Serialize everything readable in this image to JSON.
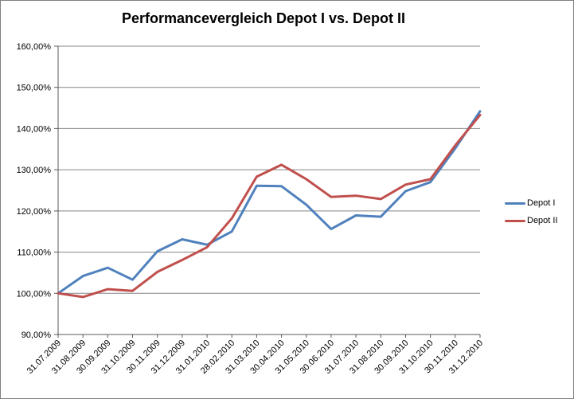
{
  "window": {
    "background": "#ffffff",
    "border_color": "#808080"
  },
  "style": {
    "gridline_color": "#848484",
    "axis_color": "#595959",
    "tick_label_color": "#000000",
    "title_color": "#000000",
    "series_line_width": 3
  },
  "chart_data": {
    "type": "line",
    "title": "Performancevergleich Depot I vs. Depot II",
    "categories": [
      "31.07.2009",
      "31.08.2009",
      "30.09.2009",
      "31.10.2009",
      "30.11.2009",
      "31.12.2009",
      "31.01.2010",
      "28.02.2010",
      "31.03.2010",
      "30.04.2010",
      "31.05.2010",
      "30.06.2010",
      "31.07.2010",
      "31.08.2010",
      "30.09.2010",
      "31.10.2010",
      "30.11.2010",
      "31.12.2010"
    ],
    "series": [
      {
        "name": "Depot I",
        "color": "#4F81BD",
        "values": [
          100.0,
          104.2,
          106.2,
          103.3,
          110.2,
          113.1,
          111.8,
          115.0,
          126.1,
          126.0,
          121.5,
          115.6,
          118.9,
          118.6,
          124.8,
          127.0,
          135.2,
          144.2
        ]
      },
      {
        "name": "Depot II",
        "color": "#C0504D",
        "values": [
          100.0,
          99.1,
          101.0,
          100.6,
          105.2,
          108.1,
          111.2,
          118.2,
          128.3,
          131.2,
          127.7,
          123.4,
          123.7,
          122.9,
          126.4,
          127.7,
          135.9,
          143.3
        ]
      }
    ],
    "xlabel": "",
    "ylabel": "",
    "ylim": [
      90,
      160
    ],
    "ytick_step": 10,
    "ytick_labels": [
      "90,00%",
      "100,00%",
      "110,00%",
      "120,00%",
      "130,00%",
      "140,00%",
      "150,00%",
      "160,00%"
    ],
    "grid": true,
    "legend_position": "right"
  }
}
